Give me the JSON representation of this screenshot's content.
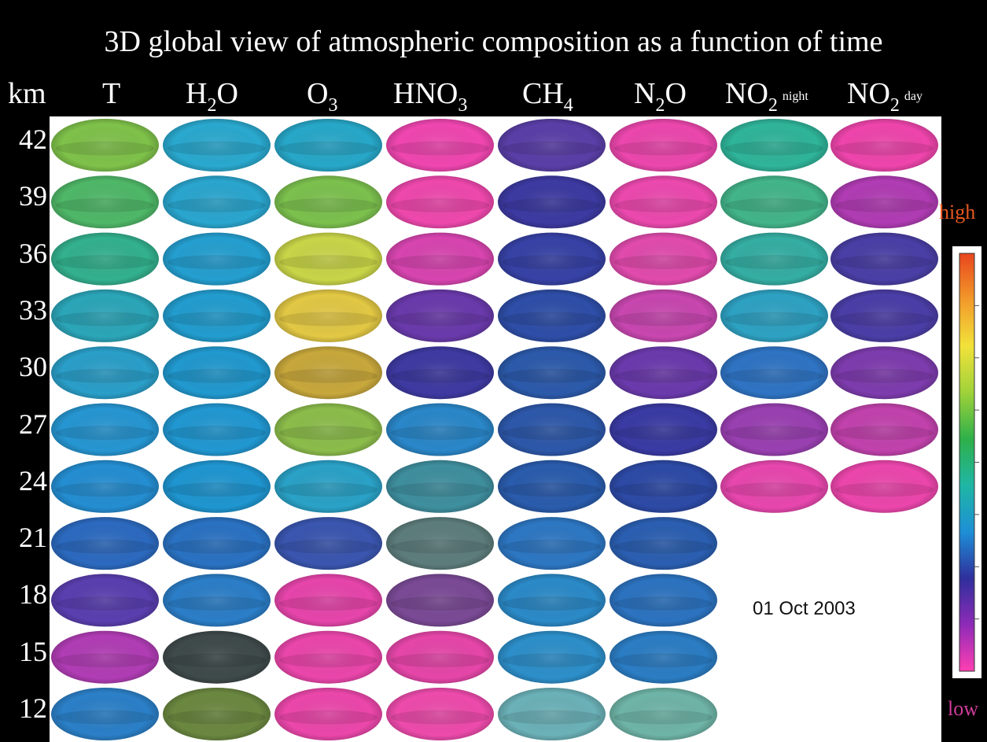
{
  "title": "3D global view of atmospheric composition as a function of time",
  "altitude_unit": "km",
  "columns": [
    {
      "base": "T",
      "sub": "",
      "tag": ""
    },
    {
      "base": "H",
      "sub": "2",
      "rest": "O",
      "tag": ""
    },
    {
      "base": "O",
      "sub": "3",
      "tag": ""
    },
    {
      "base": "HNO",
      "sub": "3",
      "tag": ""
    },
    {
      "base": "CH",
      "sub": "4",
      "tag": ""
    },
    {
      "base": "N",
      "sub": "2",
      "rest": "O",
      "tag": ""
    },
    {
      "base": "NO",
      "sub": "2",
      "tag": "night"
    },
    {
      "base": "NO",
      "sub": "2",
      "tag": "day"
    }
  ],
  "altitudes": [
    "42",
    "39",
    "36",
    "33",
    "30",
    "27",
    "24",
    "21",
    "18",
    "15",
    "12"
  ],
  "date": "01 Oct 2003",
  "colorbar": {
    "high_label": "high",
    "low_label": "low",
    "colors": [
      "#ff3fb2",
      "#8e2bb8",
      "#2f2f9c",
      "#1e8fd6",
      "#1fb6a5",
      "#2fb04a",
      "#9fd23a",
      "#f2e23a",
      "#f29a2a",
      "#e8451e"
    ]
  },
  "maps": {
    "missing": "rows 21–12 have no NO2 night / NO2 day panels",
    "colors": [
      [
        "#7fc24a",
        "#2aa9cf",
        "#27a8c9",
        "#f046b0",
        "#5a3fa8",
        "#ec47ad",
        "#2fb59a",
        "#ef45ac"
      ],
      [
        "#4fb868",
        "#2aa6cf",
        "#7cc14e",
        "#ef48ad",
        "#3d3aa2",
        "#ec49ae",
        "#43b58a",
        "#b13cb4"
      ],
      [
        "#33b18e",
        "#249fd0",
        "#c9d548",
        "#d845b0",
        "#3742a6",
        "#e14bad",
        "#35aea3",
        "#4a3fa6"
      ],
      [
        "#2ba6b9",
        "#229dcf",
        "#e2c844",
        "#6a3aac",
        "#2e4ea8",
        "#c847b0",
        "#2ea2c3",
        "#4b3ea7"
      ],
      [
        "#2a9fc9",
        "#2199cf",
        "#c8a83c",
        "#3e3aa2",
        "#2c5aab",
        "#6b3aad",
        "#2f74c4",
        "#7e3cae"
      ],
      [
        "#2696d2",
        "#2198d2",
        "#8cbd4b",
        "#2a87c9",
        "#2d58aa",
        "#3a3ba4",
        "#9a40b2",
        "#c242ad"
      ],
      [
        "#248ed2",
        "#1f96d1",
        "#2aa2c7",
        "#3f8f9f",
        "#2a5cad",
        "#2d4aa6",
        "#e847ae",
        "#ec46ac"
      ],
      [
        "#2c6ac0",
        "#2a72c3",
        "#3a56b0",
        "#5d7d7c",
        "#2d77c3",
        "#2b5fb2",
        null,
        null
      ],
      [
        "#5a3fb0",
        "#2b7ec8",
        "#e745ab",
        "#7b4a96",
        "#2b8ac8",
        "#2c73c0",
        null,
        null
      ],
      [
        "#b13db5",
        "#3f4a4a",
        "#eb46ab",
        "#e646a9",
        "#2d8fca",
        "#2b7dc4",
        null,
        null
      ],
      [
        "#2b80c8",
        "#6b8840",
        "#ec47ab",
        "#ee4bac",
        "#6bb2b8",
        "#6fb5a7",
        null,
        null
      ]
    ]
  }
}
